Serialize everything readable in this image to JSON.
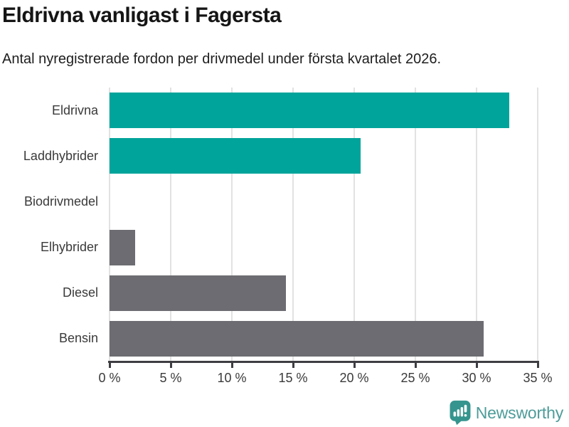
{
  "chart_data": {
    "type": "bar",
    "orientation": "horizontal",
    "title": "Eldrivna vanligast i Fagersta",
    "subtitle": "Antal nyregistrerade fordon per drivmedel under första kvartalet 2026.",
    "categories": [
      "Eldrivna",
      "Laddhybrider",
      "Biodrivmedel",
      "Elhybrider",
      "Diesel",
      "Bensin"
    ],
    "values": [
      32.7,
      20.5,
      0,
      2.1,
      14.4,
      30.6
    ],
    "unit": "%",
    "xlim": [
      0,
      35
    ],
    "x_ticks": [
      0,
      5,
      10,
      15,
      20,
      25,
      30,
      35
    ],
    "x_tick_labels": [
      "0 %",
      "5 %",
      "10 %",
      "15 %",
      "20 %",
      "25 %",
      "30 %",
      "35 %"
    ],
    "bar_colors": [
      "#00a49b",
      "#00a49b",
      "#6c6c72",
      "#6c6c72",
      "#6c6c72",
      "#6c6c72"
    ],
    "grid": true,
    "legend": "none",
    "colors": {
      "highlight": "#00a49b",
      "default": "#6c6c72",
      "gridline": "#e2e2e2",
      "axis": "#3d3d42",
      "label": "#3a3a3a"
    }
  },
  "footer": {
    "brand": "Newsworthy",
    "brand_color": "#4d9c99",
    "logo_icon_color": "#35948e",
    "logo_icon": "newsworthy-speech-bubble-chart-icon"
  }
}
